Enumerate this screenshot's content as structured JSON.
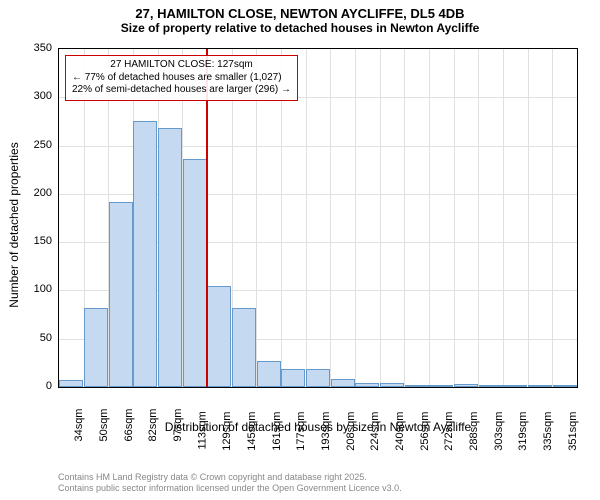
{
  "title": "27, HAMILTON CLOSE, NEWTON AYCLIFFE, DL5 4DB",
  "subtitle": "Size of property relative to detached houses in Newton Aycliffe",
  "title_fontsize": 13,
  "subtitle_fontsize": 12,
  "chart": {
    "type": "bar",
    "background_color": "#ffffff",
    "grid_color": "#e0e0e0",
    "bar_color": "#c5d9f1",
    "bar_border_color": "#6699cc",
    "ref_line_color": "#cc0000",
    "axis_color": "#000000",
    "font_color": "#333333",
    "ylim": [
      0,
      350
    ],
    "ytick_step": 50,
    "ylabel": "Number of detached properties",
    "xlabel": "Distribution of detached houses by size in Newton Aycliffe",
    "label_fontsize": 12,
    "tick_fontsize": 11,
    "bar_width": 0.98,
    "categories": [
      "34sqm",
      "50sqm",
      "66sqm",
      "82sqm",
      "97sqm",
      "113sqm",
      "129sqm",
      "145sqm",
      "161sqm",
      "177sqm",
      "193sqm",
      "208sqm",
      "224sqm",
      "240sqm",
      "256sqm",
      "272sqm",
      "288sqm",
      "303sqm",
      "319sqm",
      "335sqm",
      "351sqm"
    ],
    "values": [
      7,
      82,
      192,
      275,
      268,
      236,
      105,
      82,
      27,
      19,
      19,
      8,
      4,
      4,
      0,
      2,
      3,
      2,
      0,
      1,
      0
    ],
    "ref_category_index": 6,
    "annotation": {
      "lines": [
        "27 HAMILTON CLOSE: 127sqm",
        "← 77% of detached houses are smaller (1,027)",
        "22% of semi-detached houses are larger (296) →"
      ],
      "fontsize": 10
    }
  },
  "footer": {
    "line1": "Contains HM Land Registry data © Crown copyright and database right 2025.",
    "line2": "Contains public sector information licensed under the Open Government Licence v3.0.",
    "color": "#888888",
    "fontsize": 9
  }
}
